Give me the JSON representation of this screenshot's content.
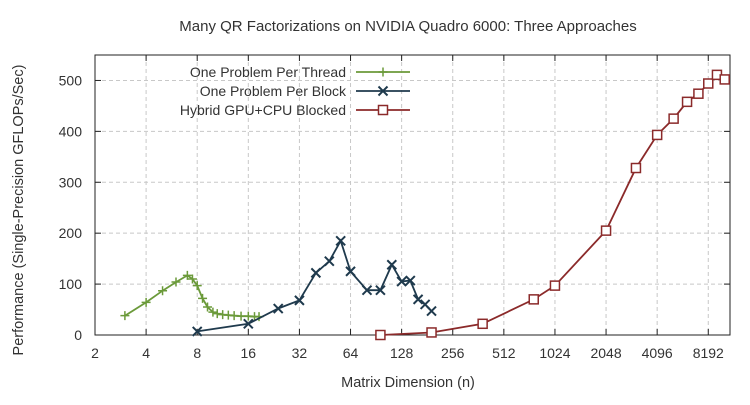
{
  "chart_data": {
    "type": "line",
    "title": "Many QR Factorizations on NVIDIA Quadro 6000: Three Approaches",
    "xlabel": "Matrix Dimension (n)",
    "ylabel": "Performance (Single-Precision GFLOPs/Sec)",
    "x_scale": "log2",
    "xlim": [
      2,
      11000
    ],
    "ylim": [
      0,
      550
    ],
    "x_ticks": [
      2,
      4,
      8,
      16,
      32,
      64,
      128,
      256,
      512,
      1024,
      2048,
      4096,
      8192
    ],
    "y_ticks": [
      0,
      100,
      200,
      300,
      400,
      500
    ],
    "grid": true,
    "legend_position": "top-left",
    "series": [
      {
        "name": "One Problem Per Thread",
        "color": "#6b9a3a",
        "marker": "plus",
        "x": [
          3,
          4,
          5,
          6,
          7,
          7.5,
          8,
          8.6,
          9.2,
          9.9,
          10.5,
          11.3,
          12.2,
          13.2,
          14.5,
          16,
          17.4,
          18.5
        ],
        "y": [
          38,
          64,
          87,
          104,
          117,
          110,
          97,
          72,
          55,
          45,
          42,
          40,
          39,
          38,
          37,
          37,
          36,
          36
        ]
      },
      {
        "name": "One Problem Per Block",
        "color": "#1f3a4d",
        "marker": "x",
        "x": [
          8,
          16,
          24,
          32,
          40,
          48,
          56,
          64,
          80,
          96,
          112,
          128,
          144,
          160,
          176,
          192
        ],
        "y": [
          7,
          22,
          52,
          68,
          122,
          145,
          185,
          125,
          88,
          88,
          138,
          105,
          107,
          70,
          60,
          47
        ]
      },
      {
        "name": "Hybrid GPU+CPU Blocked",
        "color": "#8b2a2a",
        "marker": "square",
        "x": [
          96,
          192,
          384,
          768,
          1024,
          2048,
          3072,
          4096,
          5120,
          6144,
          7168,
          8192,
          9216,
          10240
        ],
        "y": [
          0,
          5,
          22,
          70,
          97,
          205,
          328,
          393,
          425,
          458,
          474,
          494,
          511,
          502
        ]
      }
    ]
  }
}
